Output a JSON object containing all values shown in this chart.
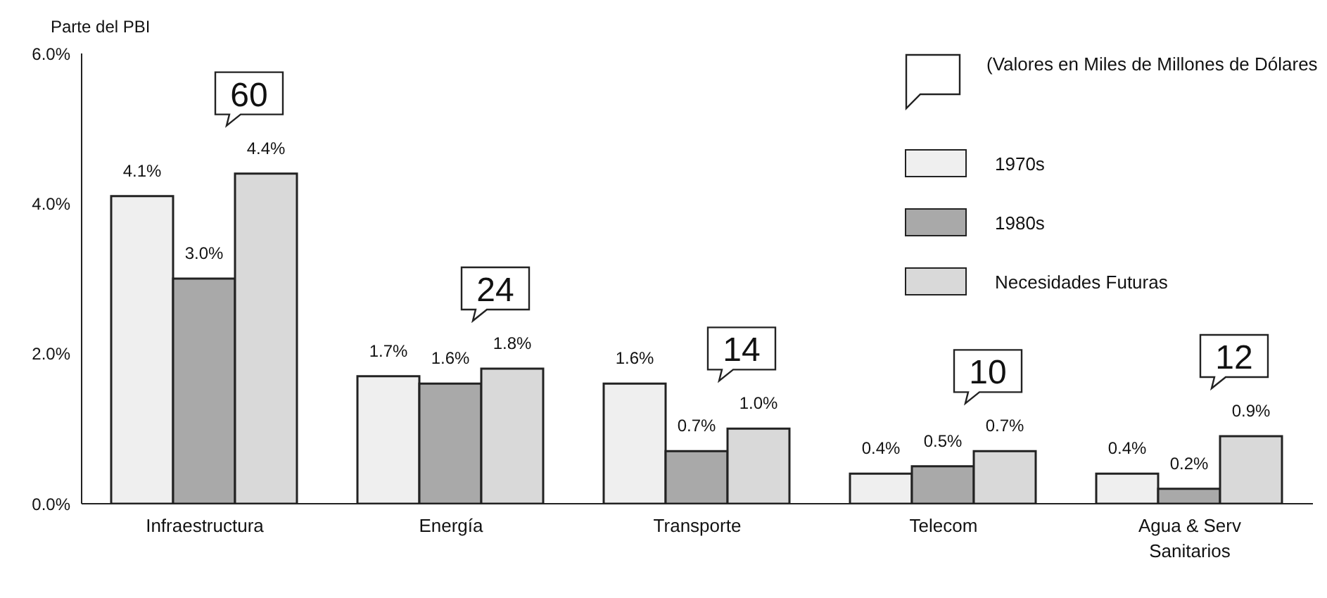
{
  "chart_data": {
    "type": "bar",
    "ylabel": "Parte del PBI",
    "categories": [
      "Infraestructura",
      "Energía",
      "Transporte",
      "Telecom",
      "Agua & Serv Sanitarios"
    ],
    "series": [
      {
        "name": "1970s",
        "color": "#efefef",
        "values": [
          4.1,
          1.7,
          1.6,
          0.4,
          0.4
        ],
        "value_labels": [
          "4.1%",
          "1.7%",
          "1.6%",
          "0.4%",
          "0.4%"
        ]
      },
      {
        "name": "1980s",
        "color": "#a9a9a9",
        "values": [
          3.0,
          1.6,
          0.7,
          0.5,
          0.2
        ],
        "value_labels": [
          "3.0%",
          "1.6%",
          "0.7%",
          "0.5%",
          "0.2%"
        ]
      },
      {
        "name": "Necesidades Futuras",
        "color": "#d9d9d9",
        "values": [
          4.4,
          1.8,
          1.0,
          0.7,
          0.9
        ],
        "value_labels": [
          "4.4%",
          "1.8%",
          "1.0%",
          "0.7%",
          "0.9%"
        ]
      }
    ],
    "ylim": [
      0,
      6
    ],
    "yticks": [
      {
        "value": 0,
        "label": "0.0%"
      },
      {
        "value": 2,
        "label": "2.0%"
      },
      {
        "value": 4,
        "label": "4.0%"
      },
      {
        "value": 6,
        "label": "6.0%"
      }
    ],
    "grid": false,
    "legend": "top right",
    "annotations": [
      "(Valores en Miles de Millones de Dólares",
      "60",
      "24",
      "14",
      "10",
      "12"
    ]
  }
}
